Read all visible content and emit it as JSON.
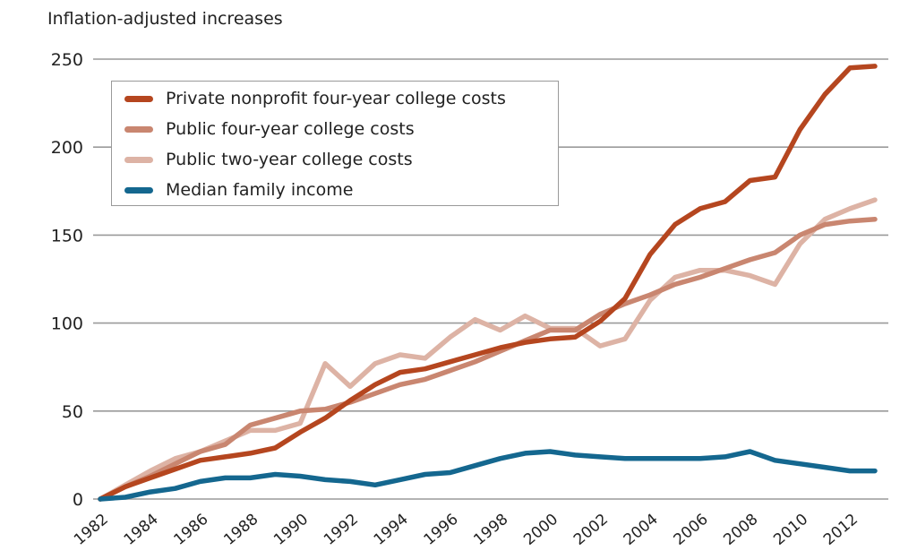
{
  "chart_data": {
    "type": "line",
    "title": "",
    "subtitle": "Inflation-adjusted increases",
    "xlabel": "",
    "ylabel": "Inflation-adjusted increases",
    "ylim": [
      0,
      250
    ],
    "yticks": [
      0,
      50,
      100,
      150,
      200,
      250
    ],
    "ytick_labels": [
      "0",
      "50",
      "100",
      "150",
      "200",
      "250"
    ],
    "xlim": [
      1982,
      2013
    ],
    "xticks": [
      1982,
      1984,
      1986,
      1988,
      1990,
      1992,
      1994,
      1996,
      1998,
      2000,
      2002,
      2004,
      2006,
      2008,
      2010,
      2012
    ],
    "xtick_labels": [
      "1982",
      "1984",
      "1986",
      "1988",
      "1990",
      "1992",
      "1994",
      "1996",
      "1998",
      "2000",
      "2002",
      "2004",
      "2006",
      "2008",
      "2010",
      "2012"
    ],
    "grid": "horizontal",
    "legend_position": "top-left",
    "x": [
      1982,
      1983,
      1984,
      1985,
      1986,
      1987,
      1988,
      1989,
      1990,
      1991,
      1992,
      1993,
      1994,
      1995,
      1996,
      1997,
      1998,
      1999,
      2000,
      2001,
      2002,
      2003,
      2004,
      2005,
      2006,
      2007,
      2008,
      2009,
      2010,
      2011,
      2012,
      2013
    ],
    "series": [
      {
        "name": "Private nonprofit four-year college costs",
        "color": "#b5461f",
        "values": [
          0,
          7,
          12,
          17,
          22,
          24,
          26,
          29,
          38,
          46,
          56,
          65,
          72,
          74,
          78,
          82,
          86,
          89,
          91,
          92,
          101,
          114,
          139,
          156,
          165,
          169,
          181,
          183,
          210,
          230,
          245,
          246
        ]
      },
      {
        "name": "Public four-year college costs",
        "color": "#c98670",
        "values": [
          0,
          7,
          13,
          20,
          27,
          31,
          42,
          46,
          50,
          51,
          55,
          60,
          65,
          68,
          73,
          78,
          84,
          90,
          96,
          96,
          105,
          111,
          116,
          122,
          126,
          131,
          136,
          140,
          150,
          156,
          158,
          159
        ]
      },
      {
        "name": "Public two-year college costs",
        "color": "#ddb3a5",
        "values": [
          0,
          8,
          16,
          23,
          27,
          33,
          39,
          39,
          43,
          77,
          64,
          77,
          82,
          80,
          92,
          102,
          96,
          104,
          97,
          97,
          87,
          91,
          113,
          126,
          130,
          130,
          127,
          122,
          145,
          159,
          165,
          170
        ]
      },
      {
        "name": "Median family income",
        "color": "#14678f",
        "values": [
          0,
          1,
          4,
          6,
          10,
          12,
          12,
          14,
          13,
          11,
          10,
          8,
          11,
          14,
          15,
          19,
          23,
          26,
          27,
          25,
          24,
          23,
          23,
          23,
          23,
          24,
          27,
          22,
          20,
          18,
          16,
          16
        ]
      }
    ]
  }
}
